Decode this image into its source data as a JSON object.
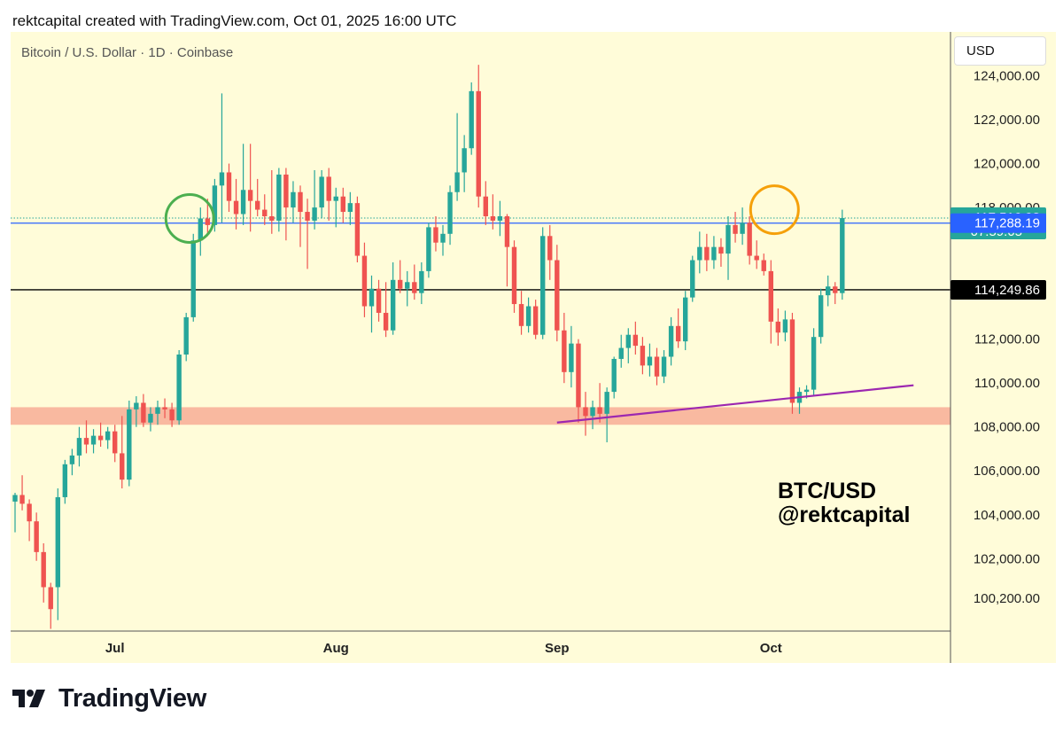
{
  "header": {
    "credit": "rektcapital created with TradingView.com, Oct 01, 2025 16:00 UTC"
  },
  "chart_header": {
    "symbol": "Bitcoin / U.S. Dollar · 1D · Coinbase",
    "currency_button": "USD"
  },
  "watermark": {
    "line1": "BTC/USD",
    "line2": "@rektcapital"
  },
  "footer": {
    "brand": "TradingView"
  },
  "colors": {
    "background": "#fffcd9",
    "up": "#26a69a",
    "down": "#ef5350",
    "support_zone": "#f9b9a0",
    "trendline": "#9c27b0",
    "green_circle": "#4caf50",
    "orange_circle": "#f5a00a",
    "blue_line": "#2962ff",
    "black_line": "#000000"
  },
  "chart_data": {
    "type": "candlestick",
    "title": "Bitcoin / U.S. Dollar · 1D · Coinbase",
    "y_range": [
      98700,
      126000
    ],
    "y_ticks": [
      {
        "value": 124000,
        "label": "124,000.00"
      },
      {
        "value": 122000,
        "label": "122,000.00"
      },
      {
        "value": 120000,
        "label": "120,000.00"
      },
      {
        "value": 118000,
        "label": "118,000.00"
      },
      {
        "value": 112000,
        "label": "112,000.00"
      },
      {
        "value": 110000,
        "label": "110,000.00"
      },
      {
        "value": 108000,
        "label": "108,000.00"
      },
      {
        "value": 106000,
        "label": "106,000.00"
      },
      {
        "value": 104000,
        "label": "104,000.00"
      },
      {
        "value": 102000,
        "label": "102,000.00"
      },
      {
        "value": 100200,
        "label": "100,200.00"
      }
    ],
    "x_ticks": [
      {
        "index": 14,
        "label": "Jul"
      },
      {
        "index": 45,
        "label": "Aug"
      },
      {
        "index": 76,
        "label": "Sep"
      },
      {
        "index": 106,
        "label": "Oct"
      }
    ],
    "price_labels": [
      {
        "value": 117516.98,
        "label": "117,516.98",
        "sub": "07:59:05",
        "color": "#26a69a"
      },
      {
        "value": 117288.19,
        "label": "117,288.19",
        "color": "#2962ff"
      },
      {
        "value": 114249.86,
        "label": "114,249.86",
        "color": "#000000"
      }
    ],
    "horizontal_lines": [
      {
        "value": 117288.19,
        "color": "#2962ff"
      },
      {
        "value": 114249.86,
        "color": "#000000"
      },
      {
        "value": 117516.98,
        "color": "#26a69a",
        "dotted": true
      }
    ],
    "support_zone": {
      "low": 108100,
      "high": 108900
    },
    "trendline": {
      "start": {
        "index": 76,
        "value": 108200
      },
      "end": {
        "index": 126,
        "value": 109900
      }
    },
    "circles": [
      {
        "index": 24.5,
        "value": 117500,
        "color": "#4caf50"
      },
      {
        "index": 106.5,
        "value": 117900,
        "color": "#f5a00a"
      }
    ],
    "candles": [
      {
        "o": 104600,
        "h": 105000,
        "l": 103200,
        "c": 104900
      },
      {
        "o": 104900,
        "h": 105800,
        "l": 104200,
        "c": 104500
      },
      {
        "o": 104500,
        "h": 104700,
        "l": 102800,
        "c": 103700
      },
      {
        "o": 103700,
        "h": 104100,
        "l": 101900,
        "c": 102300
      },
      {
        "o": 102300,
        "h": 102700,
        "l": 100000,
        "c": 100700
      },
      {
        "o": 100700,
        "h": 100900,
        "l": 98800,
        "c": 99700
      },
      {
        "o": 100700,
        "h": 105200,
        "l": 99200,
        "c": 104800
      },
      {
        "o": 104800,
        "h": 106500,
        "l": 104500,
        "c": 106300
      },
      {
        "o": 106300,
        "h": 107000,
        "l": 105800,
        "c": 106700
      },
      {
        "o": 106700,
        "h": 108000,
        "l": 106200,
        "c": 107500
      },
      {
        "o": 107500,
        "h": 108300,
        "l": 106800,
        "c": 107200
      },
      {
        "o": 107200,
        "h": 107900,
        "l": 106800,
        "c": 107600
      },
      {
        "o": 107600,
        "h": 108200,
        "l": 107100,
        "c": 107400
      },
      {
        "o": 107400,
        "h": 108000,
        "l": 107000,
        "c": 107800
      },
      {
        "o": 107800,
        "h": 108100,
        "l": 106400,
        "c": 106800
      },
      {
        "o": 106800,
        "h": 108500,
        "l": 105200,
        "c": 105600
      },
      {
        "o": 105600,
        "h": 109200,
        "l": 105300,
        "c": 108800
      },
      {
        "o": 108800,
        "h": 109400,
        "l": 108000,
        "c": 109100
      },
      {
        "o": 109100,
        "h": 109500,
        "l": 108000,
        "c": 108200
      },
      {
        "o": 108200,
        "h": 108900,
        "l": 107800,
        "c": 108600
      },
      {
        "o": 108600,
        "h": 109200,
        "l": 108100,
        "c": 108900
      },
      {
        "o": 108900,
        "h": 109300,
        "l": 108400,
        "c": 108800
      },
      {
        "o": 108800,
        "h": 109100,
        "l": 108000,
        "c": 108300
      },
      {
        "o": 108300,
        "h": 111500,
        "l": 108100,
        "c": 111300
      },
      {
        "o": 111300,
        "h": 113200,
        "l": 111000,
        "c": 113000
      },
      {
        "o": 113000,
        "h": 116800,
        "l": 112800,
        "c": 116500
      },
      {
        "o": 116500,
        "h": 118000,
        "l": 115800,
        "c": 117500
      },
      {
        "o": 117500,
        "h": 118400,
        "l": 116700,
        "c": 117200
      },
      {
        "o": 117200,
        "h": 119300,
        "l": 116900,
        "c": 119000
      },
      {
        "o": 119000,
        "h": 123200,
        "l": 117300,
        "c": 119600
      },
      {
        "o": 119600,
        "h": 120000,
        "l": 117800,
        "c": 118300
      },
      {
        "o": 118300,
        "h": 119300,
        "l": 117000,
        "c": 117700
      },
      {
        "o": 117700,
        "h": 120900,
        "l": 117200,
        "c": 118800
      },
      {
        "o": 118800,
        "h": 120900,
        "l": 116900,
        "c": 118300
      },
      {
        "o": 118300,
        "h": 119300,
        "l": 117600,
        "c": 117900
      },
      {
        "o": 117900,
        "h": 118600,
        "l": 117200,
        "c": 117600
      },
      {
        "o": 117600,
        "h": 119700,
        "l": 116800,
        "c": 117400
      },
      {
        "o": 117400,
        "h": 119800,
        "l": 116900,
        "c": 119500
      },
      {
        "o": 119500,
        "h": 119800,
        "l": 116500,
        "c": 118000
      },
      {
        "o": 118000,
        "h": 119200,
        "l": 117300,
        "c": 118700
      },
      {
        "o": 118700,
        "h": 119000,
        "l": 116200,
        "c": 117800
      },
      {
        "o": 117800,
        "h": 118400,
        "l": 115200,
        "c": 117400
      },
      {
        "o": 117400,
        "h": 119700,
        "l": 117000,
        "c": 118000
      },
      {
        "o": 118000,
        "h": 119700,
        "l": 117500,
        "c": 119400
      },
      {
        "o": 119400,
        "h": 119800,
        "l": 117400,
        "c": 118300
      },
      {
        "o": 118300,
        "h": 118900,
        "l": 117100,
        "c": 118500
      },
      {
        "o": 118500,
        "h": 118900,
        "l": 117300,
        "c": 117800
      },
      {
        "o": 117800,
        "h": 118700,
        "l": 117200,
        "c": 118200
      },
      {
        "o": 118200,
        "h": 118500,
        "l": 115500,
        "c": 115800
      },
      {
        "o": 115800,
        "h": 116400,
        "l": 113000,
        "c": 113500
      },
      {
        "o": 113500,
        "h": 114900,
        "l": 112300,
        "c": 114300
      },
      {
        "o": 114300,
        "h": 114700,
        "l": 112800,
        "c": 113200
      },
      {
        "o": 113200,
        "h": 114600,
        "l": 112100,
        "c": 112400
      },
      {
        "o": 112400,
        "h": 115500,
        "l": 112200,
        "c": 114700
      },
      {
        "o": 114700,
        "h": 115600,
        "l": 114100,
        "c": 114300
      },
      {
        "o": 114300,
        "h": 115100,
        "l": 113500,
        "c": 114600
      },
      {
        "o": 114600,
        "h": 115400,
        "l": 113800,
        "c": 114100
      },
      {
        "o": 114100,
        "h": 115500,
        "l": 113600,
        "c": 115100
      },
      {
        "o": 115100,
        "h": 117300,
        "l": 114800,
        "c": 117100
      },
      {
        "o": 117100,
        "h": 117600,
        "l": 116000,
        "c": 116400
      },
      {
        "o": 116400,
        "h": 117200,
        "l": 115800,
        "c": 116800
      },
      {
        "o": 116800,
        "h": 119000,
        "l": 116300,
        "c": 118700
      },
      {
        "o": 118700,
        "h": 122300,
        "l": 118300,
        "c": 119600
      },
      {
        "o": 119600,
        "h": 121300,
        "l": 118700,
        "c": 120700
      },
      {
        "o": 120700,
        "h": 123700,
        "l": 120400,
        "c": 123300
      },
      {
        "o": 123300,
        "h": 124500,
        "l": 118000,
        "c": 118500
      },
      {
        "o": 118500,
        "h": 119200,
        "l": 117200,
        "c": 117600
      },
      {
        "o": 117600,
        "h": 118600,
        "l": 117000,
        "c": 117400
      },
      {
        "o": 117400,
        "h": 118300,
        "l": 116700,
        "c": 117600
      },
      {
        "o": 117600,
        "h": 117700,
        "l": 114400,
        "c": 116200
      },
      {
        "o": 116200,
        "h": 116500,
        "l": 113200,
        "c": 113600
      },
      {
        "o": 113600,
        "h": 114200,
        "l": 112200,
        "c": 112600
      },
      {
        "o": 112600,
        "h": 113900,
        "l": 112300,
        "c": 113500
      },
      {
        "o": 113500,
        "h": 113800,
        "l": 112000,
        "c": 112200
      },
      {
        "o": 112200,
        "h": 117100,
        "l": 112000,
        "c": 116700
      },
      {
        "o": 116700,
        "h": 117200,
        "l": 114700,
        "c": 115600
      },
      {
        "o": 115600,
        "h": 116300,
        "l": 111900,
        "c": 112400
      },
      {
        "o": 112400,
        "h": 113200,
        "l": 110000,
        "c": 110500
      },
      {
        "o": 110500,
        "h": 112600,
        "l": 109800,
        "c": 111800
      },
      {
        "o": 111800,
        "h": 112000,
        "l": 108200,
        "c": 108900
      },
      {
        "o": 108900,
        "h": 109600,
        "l": 107600,
        "c": 108500
      },
      {
        "o": 108500,
        "h": 109200,
        "l": 107900,
        "c": 108900
      },
      {
        "o": 108900,
        "h": 110000,
        "l": 108200,
        "c": 108600
      },
      {
        "o": 108600,
        "h": 109800,
        "l": 107300,
        "c": 109600
      },
      {
        "o": 109600,
        "h": 111200,
        "l": 109300,
        "c": 111100
      },
      {
        "o": 111100,
        "h": 112200,
        "l": 110700,
        "c": 111600
      },
      {
        "o": 111600,
        "h": 112500,
        "l": 110900,
        "c": 112200
      },
      {
        "o": 112200,
        "h": 112800,
        "l": 111300,
        "c": 111700
      },
      {
        "o": 111700,
        "h": 112100,
        "l": 110400,
        "c": 110800
      },
      {
        "o": 110800,
        "h": 111800,
        "l": 110300,
        "c": 111200
      },
      {
        "o": 111200,
        "h": 111600,
        "l": 109900,
        "c": 110300
      },
      {
        "o": 110300,
        "h": 111500,
        "l": 110000,
        "c": 111200
      },
      {
        "o": 111200,
        "h": 113000,
        "l": 110800,
        "c": 112600
      },
      {
        "o": 112600,
        "h": 113400,
        "l": 111600,
        "c": 111900
      },
      {
        "o": 111900,
        "h": 114200,
        "l": 111500,
        "c": 113900
      },
      {
        "o": 113900,
        "h": 115800,
        "l": 113700,
        "c": 115600
      },
      {
        "o": 115600,
        "h": 116900,
        "l": 115000,
        "c": 116200
      },
      {
        "o": 116200,
        "h": 116800,
        "l": 115100,
        "c": 115600
      },
      {
        "o": 115600,
        "h": 116700,
        "l": 115200,
        "c": 116200
      },
      {
        "o": 116200,
        "h": 116600,
        "l": 115300,
        "c": 115900
      },
      {
        "o": 115900,
        "h": 117600,
        "l": 114700,
        "c": 117200
      },
      {
        "o": 117200,
        "h": 117800,
        "l": 116400,
        "c": 116800
      },
      {
        "o": 116800,
        "h": 118000,
        "l": 116300,
        "c": 117300
      },
      {
        "o": 117300,
        "h": 117600,
        "l": 115400,
        "c": 115800
      },
      {
        "o": 115800,
        "h": 116500,
        "l": 115200,
        "c": 115600
      },
      {
        "o": 115600,
        "h": 115900,
        "l": 114900,
        "c": 115100
      },
      {
        "o": 115100,
        "h": 115600,
        "l": 111800,
        "c": 112800
      },
      {
        "o": 112800,
        "h": 113400,
        "l": 111700,
        "c": 112300
      },
      {
        "o": 112300,
        "h": 113300,
        "l": 111900,
        "c": 112900
      },
      {
        "o": 112900,
        "h": 113200,
        "l": 108600,
        "c": 109100
      },
      {
        "o": 109100,
        "h": 109800,
        "l": 108600,
        "c": 109600
      },
      {
        "o": 109600,
        "h": 109900,
        "l": 109300,
        "c": 109700
      },
      {
        "o": 109700,
        "h": 112500,
        "l": 109400,
        "c": 112100
      },
      {
        "o": 112100,
        "h": 114300,
        "l": 111800,
        "c": 114000
      },
      {
        "o": 114000,
        "h": 114900,
        "l": 113500,
        "c": 114400
      },
      {
        "o": 114400,
        "h": 114600,
        "l": 113600,
        "c": 114100
      },
      {
        "o": 114100,
        "h": 117900,
        "l": 113800,
        "c": 117517
      }
    ]
  }
}
